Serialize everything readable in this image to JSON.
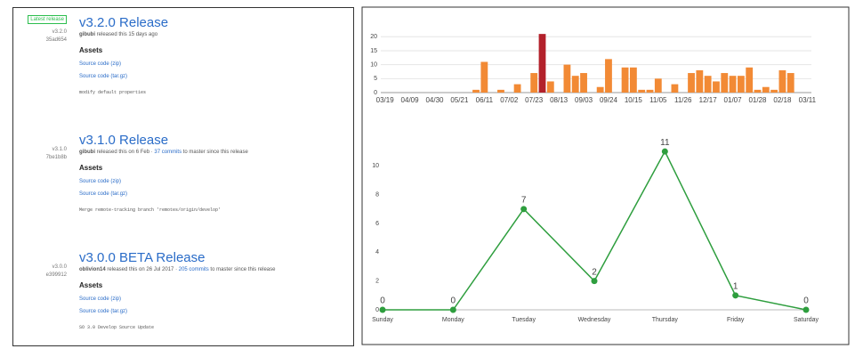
{
  "releases": [
    {
      "badge": "Latest release",
      "tag": "v3.2.0",
      "commit": "35ad654",
      "title": "v3.2.0 Release",
      "author": "gibubi",
      "meta": "released this 15 days ago",
      "commits_link": null,
      "meta_tail": null,
      "assets_heading": "Assets",
      "assets": [
        "Source code (zip)",
        "Source code (tar.gz)"
      ],
      "description": "modify default properties"
    },
    {
      "badge": null,
      "tag": "v3.1.0",
      "commit": "7be1b8b",
      "title": "v3.1.0 Release",
      "author": "gibubi",
      "meta": "released this on 6 Feb ·",
      "commits_link": "37 commits",
      "meta_tail": "to master since this release",
      "assets_heading": "Assets",
      "assets": [
        "Source code (zip)",
        "Source code (tar.gz)"
      ],
      "description": "Merge remote-tracking branch 'remotes/origin/develop'"
    },
    {
      "badge": null,
      "tag": "v3.0.0",
      "commit": "e399912",
      "title": "v3.0.0 BETA Release",
      "author": "oblivion14",
      "meta": "released this on 26 Jul 2017 ·",
      "commits_link": "205 commits",
      "meta_tail": "to master since this release",
      "assets_heading": "Assets",
      "assets": [
        "Source code (zip)",
        "Source code (tar.gz)"
      ],
      "description": "SO 3.0 Develop Source Update"
    }
  ],
  "chart_data": [
    {
      "type": "bar",
      "categories": [
        "03/19",
        null,
        null,
        "04/09",
        null,
        null,
        "04/30",
        null,
        null,
        "05/21",
        null,
        null,
        "06/11",
        null,
        null,
        "07/02",
        null,
        null,
        "07/23",
        null,
        null,
        "08/13",
        null,
        null,
        "09/03",
        null,
        null,
        "09/24",
        null,
        null,
        "10/15",
        null,
        null,
        "11/05",
        null,
        null,
        "11/26",
        null,
        null,
        "12/17",
        null,
        null,
        "01/07",
        null,
        null,
        "01/28",
        null,
        null,
        "02/18",
        null,
        null,
        "03/11"
      ],
      "values": [
        0,
        0,
        0,
        0,
        0,
        0,
        0,
        0,
        0,
        0,
        0,
        1,
        11,
        0,
        1,
        0,
        3,
        0,
        7,
        21,
        4,
        0,
        10,
        6,
        7,
        0,
        2,
        12,
        0,
        9,
        9,
        1,
        1,
        5,
        0,
        3,
        0,
        7,
        8,
        6,
        4,
        7,
        6,
        6,
        9,
        1,
        2,
        1,
        8,
        7,
        0,
        0
      ],
      "color": "#f28a35",
      "highlight_color": "#b3212b",
      "highlight": [
        19
      ],
      "ylim": [
        0,
        22
      ],
      "yticks": [
        0,
        5,
        10,
        15,
        20
      ],
      "grid": true
    },
    {
      "type": "line",
      "categories": [
        "Sunday",
        "Monday",
        "Tuesday",
        "Wednesday",
        "Thursday",
        "Friday",
        "Saturday"
      ],
      "values": [
        0,
        0,
        7,
        2,
        11,
        1,
        0
      ],
      "color": "#2e9e3e",
      "ylim": [
        0,
        12
      ],
      "yticks": [
        0,
        2,
        4,
        6,
        8,
        10
      ],
      "grid": false
    }
  ]
}
